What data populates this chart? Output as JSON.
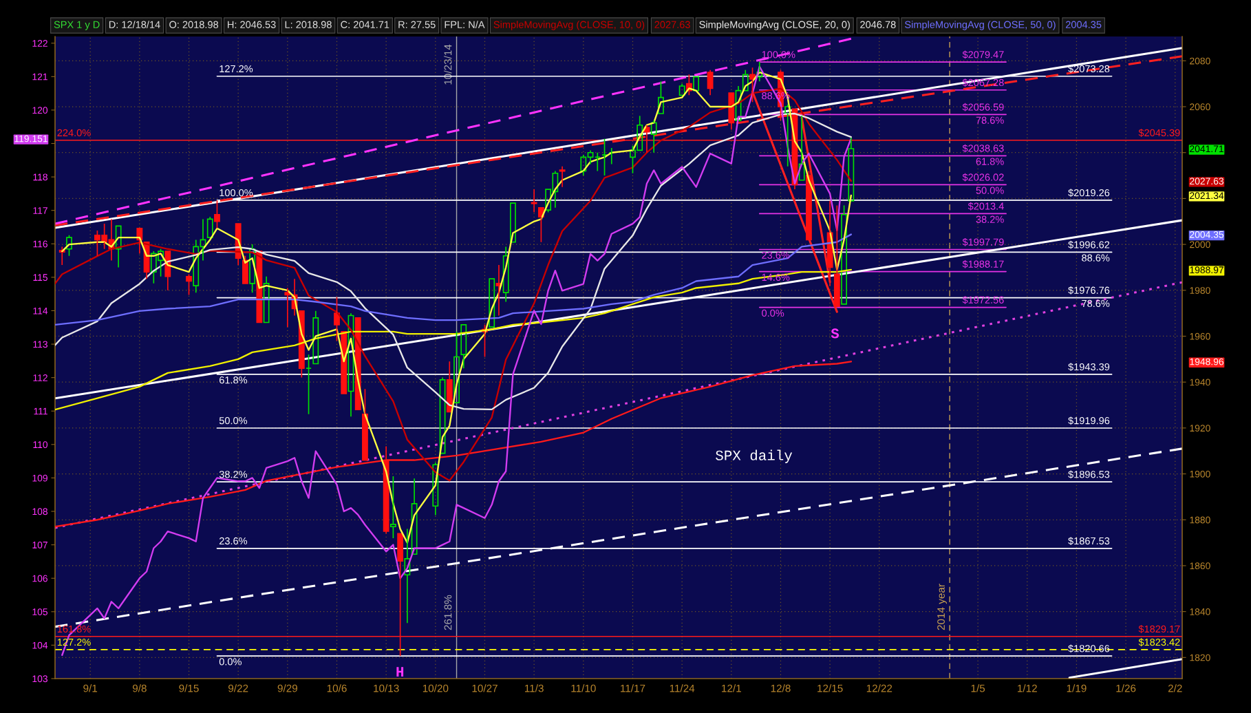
{
  "chart_data": {
    "type": "candlestick",
    "title": "SPX daily",
    "subtitle": "SPX 1 y D",
    "annotations": [
      "261.8%",
      "H",
      "S",
      "D: 12/18/14",
      "O: 2018.98",
      "H: 2046.53",
      "L: 2018.98",
      "C: 2041.71",
      "R: 27.55",
      "FPL: N/A",
      "2027.63",
      "2046.78",
      "2004.35"
    ],
    "x": [
      "2014-08-28",
      "2014-08-29",
      "2014-09-02",
      "2014-09-03",
      "2014-09-04",
      "2014-09-05",
      "2014-09-08",
      "2014-09-09",
      "2014-09-10",
      "2014-09-11",
      "2014-09-12",
      "2014-09-15",
      "2014-09-16",
      "2014-09-17",
      "2014-09-18",
      "2014-09-19",
      "2014-09-22",
      "2014-09-23",
      "2014-09-24",
      "2014-09-25",
      "2014-09-26",
      "2014-09-29",
      "2014-09-30",
      "2014-10-01",
      "2014-10-02",
      "2014-10-03",
      "2014-10-06",
      "2014-10-07",
      "2014-10-08",
      "2014-10-09",
      "2014-10-10",
      "2014-10-13",
      "2014-10-14",
      "2014-10-15",
      "2014-10-16",
      "2014-10-17",
      "2014-10-20",
      "2014-10-21",
      "2014-10-22",
      "2014-10-23",
      "2014-10-24",
      "2014-10-27",
      "2014-10-28",
      "2014-10-29",
      "2014-10-30",
      "2014-10-31",
      "2014-11-03",
      "2014-11-04",
      "2014-11-05",
      "2014-11-06",
      "2014-11-07",
      "2014-11-10",
      "2014-11-11",
      "2014-11-12",
      "2014-11-13",
      "2014-11-14",
      "2014-11-17",
      "2014-11-18",
      "2014-11-19",
      "2014-11-20",
      "2014-11-21",
      "2014-11-24",
      "2014-11-25",
      "2014-11-26",
      "2014-11-28",
      "2014-12-01",
      "2014-12-02",
      "2014-12-03",
      "2014-12-04",
      "2014-12-05",
      "2014-12-08",
      "2014-12-09",
      "2014-12-10",
      "2014-12-11",
      "2014-12-12",
      "2014-12-15",
      "2014-12-16",
      "2014-12-17",
      "2014-12-18"
    ],
    "xlim": [
      "2014-08-27",
      "2015-02-03"
    ],
    "xticks": [
      {
        "value": "2014-09-01",
        "label": "9/1"
      },
      {
        "value": "2014-09-08",
        "label": "9/8"
      },
      {
        "value": "2014-09-15",
        "label": "9/15"
      },
      {
        "value": "2014-09-22",
        "label": "9/22"
      },
      {
        "value": "2014-09-29",
        "label": "9/29"
      },
      {
        "value": "2014-10-06",
        "label": "10/6"
      },
      {
        "value": "2014-10-13",
        "label": "10/13"
      },
      {
        "value": "2014-10-20",
        "label": "10/20"
      },
      {
        "value": "2014-10-27",
        "label": "10/27"
      },
      {
        "value": "2014-11-03",
        "label": "11/3"
      },
      {
        "value": "2014-11-10",
        "label": "11/10"
      },
      {
        "value": "2014-11-17",
        "label": "11/17"
      },
      {
        "value": "2014-11-24",
        "label": "11/24"
      },
      {
        "value": "2014-12-01",
        "label": "12/1"
      },
      {
        "value": "2014-12-08",
        "label": "12/8"
      },
      {
        "value": "2014-12-15",
        "label": "12/15"
      },
      {
        "value": "2014-12-22",
        "label": "12/22"
      },
      {
        "value": "2015-01-05",
        "label": "1/5"
      },
      {
        "value": "2015-01-12",
        "label": "1/12"
      },
      {
        "value": "2015-01-19",
        "label": "1/19"
      },
      {
        "value": "2015-01-26",
        "label": "1/26"
      },
      {
        "value": "2015-02-02",
        "label": "2/2"
      }
    ],
    "ylim": [
      103.0,
      122.2
    ],
    "yticks": [
      103,
      104,
      105,
      106,
      107,
      108,
      109,
      110,
      111,
      112,
      113,
      114,
      115,
      116,
      117,
      118,
      {
        "value": 119,
        "label": null
      },
      119.151,
      120,
      121,
      122
    ],
    "y2lim": [
      1810.8,
      2090.6
    ],
    "y2ticks": [
      1820,
      1840,
      1860,
      1880,
      1900,
      1920,
      1940,
      1948.96,
      1960,
      1980,
      1988.97,
      2000,
      2004.35,
      {
        "value": 2020,
        "label": null
      },
      2021.34,
      2027.63,
      {
        "value": 2040,
        "label": null
      },
      2041.71,
      2060,
      2080
    ],
    "grid": true,
    "legend": "top",
    "ref_lines": [
      {
        "axis": "x",
        "value": "2014-10-23",
        "label": "10/23/14",
        "color": "#a8a8a8"
      },
      {
        "axis": "x",
        "value": "2015-01-01",
        "label": "2014 year",
        "color": "#c8a050",
        "line_style": "dashed"
      }
    ],
    "series": [
      {
        "type": "line",
        "axis": "y2",
        "name": "127.2%",
        "color": "#ffffff",
        "x": [
          "2014-09-19",
          "2015-01-24"
        ],
        "values": [
          2073.28,
          2073.28
        ],
        "value_labels": [
          null,
          "$2073.28"
        ]
      },
      {
        "type": "line",
        "axis": "y2",
        "name": "100.0%",
        "color": "#ffffff",
        "x": [
          "2014-09-19",
          "2015-01-24"
        ],
        "values": [
          2019.26,
          2019.26
        ],
        "value_labels": [
          null,
          "$2019.26"
        ]
      },
      {
        "type": "line",
        "axis": "y2",
        "name": "88.6%",
        "color": "#ffffff",
        "x": [
          "2014-09-19",
          "2015-01-24"
        ],
        "values": [
          1996.62,
          1996.62
        ],
        "value_labels": [
          null,
          "$1996.62"
        ]
      },
      {
        "type": "line",
        "axis": "y2",
        "name": "78.6%",
        "color": "#ffffff",
        "x": [
          "2014-09-19",
          "2015-01-24"
        ],
        "values": [
          1976.76,
          1976.76
        ],
        "value_labels": [
          null,
          "$1976.76"
        ]
      },
      {
        "type": "line",
        "axis": "y2",
        "name": "61.8%",
        "color": "#ffffff",
        "x": [
          "2014-09-19",
          "2015-01-24"
        ],
        "values": [
          1943.39,
          1943.39
        ],
        "value_labels": [
          null,
          "$1943.39"
        ]
      },
      {
        "type": "line",
        "axis": "y2",
        "name": "50.0%",
        "color": "#ffffff",
        "x": [
          "2014-09-19",
          "2015-01-24"
        ],
        "values": [
          1919.96,
          1919.96
        ],
        "value_labels": [
          null,
          "$1919.96"
        ]
      },
      {
        "type": "line",
        "axis": "y2",
        "name": "38.2%",
        "color": "#ffffff",
        "x": [
          "2014-09-19",
          "2015-01-24"
        ],
        "values": [
          1896.53,
          1896.53
        ],
        "value_labels": [
          null,
          "$1896.53"
        ]
      },
      {
        "type": "line",
        "axis": "y2",
        "name": "23.6%",
        "color": "#ffffff",
        "x": [
          "2014-09-19",
          "2015-01-24"
        ],
        "values": [
          1867.53,
          1867.53
        ],
        "value_labels": [
          null,
          "$1867.53"
        ]
      },
      {
        "type": "line",
        "axis": "y2",
        "name": "0.0%",
        "color": "#ffffff",
        "x": [
          "2014-09-19",
          "2015-01-24"
        ],
        "values": [
          1820.66,
          1820.66
        ],
        "value_labels": [
          null,
          "$1820.66"
        ]
      },
      {
        "type": "line",
        "axis": "y2",
        "name": "100.0%",
        "color": "#e632e6",
        "x": [
          "2014-12-05",
          "2015-01-09"
        ],
        "values": [
          2079.47,
          2079.47
        ],
        "value_labels": [
          null,
          "$2079.47"
        ]
      },
      {
        "type": "line",
        "axis": "y2",
        "name": "88.6%",
        "color": "#e632e6",
        "x": [
          "2014-12-05",
          "2015-01-09"
        ],
        "values": [
          2067.28,
          2067.28
        ],
        "value_labels": [
          null,
          "$2067.28"
        ]
      },
      {
        "type": "line",
        "axis": "y2",
        "name": "78.6%",
        "color": "#e632e6",
        "x": [
          "2014-12-05",
          "2015-01-09"
        ],
        "values": [
          2056.59,
          2056.59
        ],
        "value_labels": [
          null,
          "$2056.59"
        ]
      },
      {
        "type": "line",
        "axis": "y2",
        "name": "61.8%",
        "color": "#e632e6",
        "x": [
          "2014-12-05",
          "2015-01-09"
        ],
        "values": [
          2038.63,
          2038.63
        ],
        "value_labels": [
          null,
          "$2038.63"
        ]
      },
      {
        "type": "line",
        "axis": "y2",
        "name": "50.0%",
        "color": "#e632e6",
        "x": [
          "2014-12-05",
          "2015-01-09"
        ],
        "values": [
          2026.02,
          2026.02
        ],
        "value_labels": [
          null,
          "$2026.02"
        ]
      },
      {
        "type": "line",
        "axis": "y2",
        "name": "38.2%",
        "color": "#e632e6",
        "x": [
          "2014-12-05",
          "2015-01-09"
        ],
        "values": [
          2013.4,
          2013.4
        ],
        "value_labels": [
          null,
          "$2013.4"
        ]
      },
      {
        "type": "line",
        "axis": "y2",
        "name": "23.6%",
        "color": "#e632e6",
        "x": [
          "2014-12-05",
          "2015-01-09"
        ],
        "values": [
          1997.79,
          1997.79
        ],
        "value_labels": [
          null,
          "$1997.79"
        ]
      },
      {
        "type": "line",
        "axis": "y2",
        "name": "14.6%",
        "color": "#e632e6",
        "x": [
          "2014-12-05",
          "2015-01-09"
        ],
        "values": [
          1988.17,
          1988.17
        ],
        "value_labels": [
          null,
          "$1988.17"
        ]
      },
      {
        "type": "line",
        "axis": "y2",
        "name": "0.0%",
        "color": "#e632e6",
        "x": [
          "2014-12-05",
          "2015-01-09"
        ],
        "values": [
          1972.56,
          1972.56
        ],
        "value_labels": [
          null,
          "$1972.56"
        ]
      },
      {
        "type": "line",
        "axis": "y2",
        "name": "224.0%",
        "color": "#ff1a1a",
        "x": [
          "2014-08-27",
          "2015-02-03"
        ],
        "values": [
          2045.39,
          2045.39
        ],
        "value_labels": [
          null,
          "$2045.39"
        ]
      },
      {
        "type": "line",
        "axis": "y2",
        "name": "161.8%",
        "color": "#ff1a1a",
        "x": [
          "2014-08-27",
          "2015-02-03"
        ],
        "values": [
          1829.17,
          1829.17
        ],
        "value_labels": [
          null,
          "$1829.17"
        ]
      },
      {
        "type": "line",
        "axis": "y2",
        "name": "127.2%",
        "color": "#ffff00",
        "line_style": "dashed",
        "x": [
          "2014-08-27",
          "2015-02-03"
        ],
        "values": [
          1823.42,
          1823.42
        ],
        "value_labels": [
          null,
          "$1823.42"
        ]
      },
      {
        "type": "line",
        "axis": "y2",
        "color": "#ffffff",
        "x": [
          "2014-08-27",
          "2015-02-03"
        ],
        "values": [
          2007.2,
          2085.6
        ]
      },
      {
        "type": "line",
        "axis": "y2",
        "color": "#ff2020",
        "line_style": "dashed",
        "x": [
          "2014-08-27",
          "2015-02-03"
        ],
        "values": [
          2008.3,
          2082.0
        ]
      },
      {
        "type": "line",
        "axis": "y2",
        "color": "#ff33ff",
        "line_style": "dashed",
        "x": [
          "2014-08-27",
          "2014-12-18"
        ],
        "values": [
          2009.0,
          2089.6
        ]
      },
      {
        "type": "line",
        "axis": "y2",
        "color": "#ffffff",
        "x": [
          "2014-08-27",
          "2015-02-03"
        ],
        "values": [
          1932.9,
          2010.5
        ]
      },
      {
        "type": "line",
        "axis": "y2",
        "color": "#ffffff",
        "line_style": "dashed",
        "x": [
          "2014-08-27",
          "2015-02-03"
        ],
        "values": [
          1833.4,
          1911.0
        ]
      },
      {
        "type": "line",
        "axis": "y2",
        "color": "#e040e0",
        "line_style": "dotted",
        "x": [
          "2014-08-27",
          "2015-02-03"
        ],
        "values": [
          1876.5,
          1983.5
        ]
      },
      {
        "type": "line",
        "axis": "y2",
        "color": "#ffffff",
        "x": [
          "2015-01-18",
          "2015-02-03"
        ],
        "values": [
          1811.2,
          1819.3
        ]
      },
      {
        "type": "line",
        "axis": "y2",
        "color": "#ff2020",
        "x": [
          "2014-12-04",
          "2014-12-16"
        ],
        "values": [
          2066.6,
          1970.6
        ]
      },
      {
        "type": "line",
        "axis": "y2",
        "color": "#ff2020",
        "x": [
          "2014-12-11",
          "2014-12-15"
        ],
        "values": [
          2055.1,
          1983.6
        ]
      },
      {
        "type": "line",
        "axis": "y2",
        "color": "#ff1a1a",
        "x": [
          "2014-08-27",
          "2014-09-02",
          "2014-09-08",
          "2014-09-12",
          "2014-09-18",
          "2014-09-23",
          "2014-09-26",
          "2014-10-01",
          "2014-10-06",
          "2014-10-13",
          "2014-10-17",
          "2014-10-23",
          "2014-10-29",
          "2014-11-04",
          "2014-11-10",
          "2014-11-14",
          "2014-11-21",
          "2014-11-28",
          "2014-12-04",
          "2014-12-10",
          "2014-12-16",
          "2014-12-18"
        ],
        "values": [
          1877,
          1880,
          1884,
          1887,
          1890,
          1893,
          1897,
          1900,
          1903,
          1906,
          1906,
          1908,
          1911,
          1914,
          1918,
          1924,
          1933,
          1938,
          1943,
          1947,
          1948,
          1948.96
        ]
      },
      {
        "type": "line",
        "axis": "y2",
        "color": "#f0f000",
        "x": [
          "2014-08-27",
          "2014-09-02",
          "2014-09-08",
          "2014-09-12",
          "2014-09-18",
          "2014-09-22",
          "2014-09-24",
          "2014-09-30",
          "2014-10-03",
          "2014-10-08",
          "2014-10-14",
          "2014-10-16",
          "2014-10-21",
          "2014-10-23",
          "2014-10-28",
          "2014-10-31",
          "2014-11-04",
          "2014-11-10",
          "2014-11-13",
          "2014-11-17",
          "2014-11-20",
          "2014-11-24",
          "2014-11-26",
          "2014-12-02",
          "2014-12-04",
          "2014-12-09",
          "2014-12-11",
          "2014-12-16",
          "2014-12-18"
        ],
        "values": [
          1928,
          1933,
          1938,
          1944,
          1947,
          1950,
          1953,
          1956,
          1959,
          1962,
          1962,
          1961,
          1961,
          1961,
          1963,
          1965,
          1966,
          1968,
          1970,
          1974,
          1977,
          1979,
          1981,
          1983,
          1985,
          1987,
          1988,
          1988,
          1988.97
        ]
      },
      {
        "type": "line",
        "axis": "y2",
        "name": "SimpleMovingAvg (CLOSE, 10, 0)",
        "color": "#c80000",
        "x": [
          "2014-08-27",
          "2014-08-28",
          "2014-09-02",
          "2014-09-04",
          "2014-09-08",
          "2014-09-10",
          "2014-09-12",
          "2014-09-16",
          "2014-09-18",
          "2014-09-22",
          "2014-09-24",
          "2014-09-26",
          "2014-09-30",
          "2014-10-02",
          "2014-10-06",
          "2014-10-08",
          "2014-10-10",
          "2014-10-14",
          "2014-10-16",
          "2014-10-20",
          "2014-10-22",
          "2014-10-24",
          "2014-10-28",
          "2014-10-30",
          "2014-11-03",
          "2014-11-05",
          "2014-11-07",
          "2014-11-11",
          "2014-11-13",
          "2014-11-17",
          "2014-11-19",
          "2014-11-21",
          "2014-11-25",
          "2014-11-28",
          "2014-12-02",
          "2014-12-04",
          "2014-12-08",
          "2014-12-10",
          "2014-12-12",
          "2014-12-16",
          "2014-12-18"
        ],
        "values": [
          1982.9,
          1987.0,
          1994.9,
          1998.0,
          2000.8,
          1999.4,
          1998.0,
          1995.8,
          1997.2,
          1996.8,
          1996.5,
          1993.1,
          1989.8,
          1977.7,
          1970.5,
          1962.8,
          1951.3,
          1931.6,
          1914.9,
          1900.7,
          1897.1,
          1905.2,
          1924.6,
          1949.8,
          1974.3,
          1991.1,
          2005.8,
          2019.0,
          2029.0,
          2033.5,
          2040.0,
          2045.3,
          2051.2,
          2057.5,
          2061.4,
          2065.9,
          2067.9,
          2062.8,
          2052.6,
          2036.8,
          2027.63
        ]
      },
      {
        "type": "line",
        "axis": "y2",
        "name": "SimpleMovingAvg (CLOSE, 20, 0)",
        "color": "#e8e8e8",
        "x": [
          "2014-08-27",
          "2014-08-28",
          "2014-09-02",
          "2014-09-04",
          "2014-09-08",
          "2014-09-10",
          "2014-09-12",
          "2014-09-16",
          "2014-09-18",
          "2014-09-22",
          "2014-09-24",
          "2014-09-26",
          "2014-09-30",
          "2014-10-02",
          "2014-10-06",
          "2014-10-08",
          "2014-10-10",
          "2014-10-14",
          "2014-10-16",
          "2014-10-20",
          "2014-10-22",
          "2014-10-24",
          "2014-10-28",
          "2014-10-30",
          "2014-11-03",
          "2014-11-05",
          "2014-11-07",
          "2014-11-11",
          "2014-11-13",
          "2014-11-17",
          "2014-11-19",
          "2014-11-21",
          "2014-11-25",
          "2014-11-28",
          "2014-12-02",
          "2014-12-04",
          "2014-12-08",
          "2014-12-10",
          "2014-12-12",
          "2014-12-16",
          "2014-12-18"
        ],
        "values": [
          1956.1,
          1959.4,
          1966.5,
          1974.4,
          1982.8,
          1988.5,
          1992.5,
          1995.4,
          1997.6,
          1998.8,
          1998.0,
          1995.6,
          1992.8,
          1987.5,
          1983.6,
          1979.6,
          1972.2,
          1960.7,
          1946.3,
          1935.6,
          1930.0,
          1928.3,
          1928.1,
          1932.3,
          1937.5,
          1944.1,
          1955.5,
          1971.8,
          1989.4,
          2003.9,
          2015.5,
          2025.6,
          2035.1,
          2043.2,
          2047.5,
          2053.0,
          2056.6,
          2057.0,
          2055.0,
          2049.1,
          2046.78
        ]
      },
      {
        "type": "line",
        "axis": "y2",
        "name": "SimpleMovingAvg (CLOSE, 50, 0)",
        "color": "#6e6eff",
        "x": [
          "2014-08-27",
          "2014-09-02",
          "2014-09-08",
          "2014-09-12",
          "2014-09-18",
          "2014-09-22",
          "2014-09-24",
          "2014-09-30",
          "2014-10-03",
          "2014-10-08",
          "2014-10-10",
          "2014-10-16",
          "2014-10-20",
          "2014-10-23",
          "2014-10-29",
          "2014-10-31",
          "2014-11-05",
          "2014-11-10",
          "2014-11-14",
          "2014-11-17",
          "2014-11-20",
          "2014-11-24",
          "2014-11-26",
          "2014-12-02",
          "2014-12-04",
          "2014-12-09",
          "2014-12-11",
          "2014-12-16",
          "2014-12-18"
        ],
        "values": [
          1965,
          1967,
          1971,
          1972,
          1973,
          1976,
          1976,
          1976,
          1975,
          1973,
          1971,
          1968,
          1967,
          1967,
          1968,
          1970,
          1971,
          1972,
          1974,
          1975,
          1978,
          1981,
          1984,
          1986,
          1991,
          1994,
          1999,
          2001,
          2004.35
        ]
      },
      {
        "type": "line",
        "axis": "y2",
        "color": "#ffff40",
        "values": [
          1997,
          2000,
          2001,
          2001,
          1999,
          2003,
          2003,
          1995,
          1995,
          1996,
          1991,
          1988,
          1994,
          1998,
          2002,
          2007,
          2002,
          1992,
          1994,
          1981,
          1982,
          1980,
          1977,
          1961,
          1954,
          1960,
          1963,
          1949,
          1959,
          1941,
          1926,
          1901,
          1887,
          1876,
          1870,
          1882,
          1895,
          1916,
          1921,
          1939,
          1950,
          1961,
          1972,
          1979,
          1990,
          2005,
          2010,
          2011,
          2018,
          2024,
          2028,
          2032,
          2036,
          2037,
          2038,
          2040,
          2041,
          2047,
          2052,
          2053,
          2062,
          2064,
          2068,
          2067,
          2060,
          2060,
          2062,
          2069,
          2071,
          2075,
          2072,
          2064,
          2045,
          2040,
          2028,
          2006,
          1989,
          2002,
          2021.34
        ]
      },
      {
        "type": "line",
        "axis": "y",
        "color": "#d23cf0",
        "values": [
          103.7,
          104.3,
          105.1,
          104.8,
          105.3,
          105.1,
          106.0,
          106.2,
          106.9,
          107.1,
          107.4,
          107.2,
          107.1,
          108.4,
          108.7,
          109.0,
          108.9,
          108.9,
          109.0,
          108.7,
          109.3,
          109.5,
          109.6,
          108.9,
          108.4,
          109.8,
          108.8,
          108.0,
          108.1,
          107.9,
          107.6,
          106.8,
          107.0,
          106.0,
          106.3,
          106.9,
          106.9,
          107.0,
          107.1,
          108.2,
          108.1,
          107.8,
          108.2,
          108.9,
          109.2,
          112.1,
          114.0,
          113.6,
          114.6,
          115.2,
          114.6,
          114.8,
          115.7,
          115.5,
          115.7,
          116.3,
          116.6,
          116.8,
          117.8,
          118.2,
          117.8,
          118.3,
          118.0,
          117.7,
          118.7,
          118.4,
          119.8,
          119.8,
          120.5,
          121.3,
          120.2,
          118.9,
          117.8,
          118.4,
          118.7,
          117.5,
          116.4,
          118.6,
          119.151
        ]
      },
      {
        "axis": "y2",
        "ohlc": [
          [
            1997.4,
            1999,
            1991,
            1996.7
          ],
          [
            1998,
            2004,
            1995,
            2003
          ],
          [
            2004,
            2006,
            1995,
            2002
          ],
          [
            2004,
            2009,
            1998,
            2001
          ],
          [
            2002,
            2011,
            1993,
            1998
          ],
          [
            1998,
            2008,
            1990,
            2008
          ],
          [
            2007,
            2007,
            1996,
            2002
          ],
          [
            2001,
            2001,
            1985,
            1988
          ],
          [
            1988,
            1997,
            1983,
            1996
          ],
          [
            1993,
            1998,
            1986,
            1997
          ],
          [
            1997,
            1997,
            1980,
            1986
          ],
          [
            1986,
            1987,
            1978,
            1984
          ],
          [
            1982,
            2002,
            1979,
            1999
          ],
          [
            1999,
            2011,
            1993,
            2002
          ],
          [
            2003,
            2012,
            2003,
            2011
          ],
          [
            2013,
            2019.26,
            2007,
            2010
          ],
          [
            2009,
            2009,
            1991,
            1994
          ],
          [
            1993,
            1995,
            1983,
            1983
          ],
          [
            1983,
            2000,
            1979,
            1998
          ],
          [
            1997,
            1997,
            1966,
            1966
          ],
          [
            1966,
            1986,
            1966,
            1983
          ],
          [
            1979,
            1981,
            1964,
            1978
          ],
          [
            1978,
            1985,
            1969,
            1972
          ],
          [
            1971,
            1971,
            1942,
            1946
          ],
          [
            1946,
            1952,
            1926,
            1946
          ],
          [
            1948,
            1971,
            1948,
            1968
          ],
          [
            1970,
            1977,
            1958,
            1965
          ],
          [
            1962,
            1962,
            1935,
            1935
          ],
          [
            1936,
            1970,
            1925,
            1969
          ],
          [
            1968,
            1968,
            1928,
            1928
          ],
          [
            1926,
            1937,
            1906,
            1906
          ],
          [
            1906,
            1912,
            1874,
            1875
          ],
          [
            1877,
            1899,
            1872,
            1878
          ],
          [
            1874,
            1874,
            1820.66,
            1862
          ],
          [
            1856,
            1876,
            1835,
            1863
          ],
          [
            1865,
            1898,
            1865,
            1887
          ],
          [
            1886,
            1905,
            1882,
            1904
          ],
          [
            1909,
            1942,
            1909,
            1941
          ],
          [
            1941,
            1949,
            1927,
            1927
          ],
          [
            1931,
            1962,
            1931,
            1951
          ],
          [
            1952,
            1965,
            1946,
            1965
          ],
          [
            1963,
            1965,
            1951,
            1962
          ],
          [
            1964,
            1985,
            1964,
            1985
          ],
          [
            1983,
            1991,
            1969,
            1982
          ],
          [
            1979,
            1999,
            1975,
            1995
          ],
          [
            2001,
            2018,
            2001,
            2018
          ],
          [
            2018.2,
            2024,
            2014,
            2017.8
          ],
          [
            2016,
            2016,
            2001,
            2012
          ],
          [
            2015,
            2024,
            2014,
            2024
          ],
          [
            2023,
            2032,
            2016,
            2031
          ],
          [
            2032.4,
            2034,
            2025,
            2031.9
          ],
          [
            2032,
            2039,
            2030,
            2038
          ],
          [
            2038,
            2041,
            2035,
            2040
          ],
          [
            2038,
            2040,
            2032,
            2038
          ],
          [
            2039,
            2046,
            2030,
            2039
          ],
          [
            2040,
            2042,
            2035,
            2040
          ],
          [
            2038,
            2043,
            2031,
            2041
          ],
          [
            2041,
            2056,
            2041,
            2052
          ],
          [
            2051,
            2052,
            2040,
            2049
          ],
          [
            2048,
            2054,
            2040,
            2053
          ],
          [
            2057,
            2071,
            2057,
            2064
          ],
          [
            2065,
            2070,
            2065,
            2069
          ],
          [
            2070,
            2074,
            2065,
            2067
          ],
          [
            2067,
            2073,
            2067,
            2073
          ],
          [
            2075,
            2076,
            2065,
            2068
          ],
          [
            2066,
            2066,
            2050,
            2053
          ],
          [
            2054,
            2069,
            2054,
            2067
          ],
          [
            2067,
            2076,
            2067,
            2074
          ],
          [
            2074,
            2077,
            2062,
            2072
          ],
          [
            2073,
            2079.47,
            2071,
            2075
          ],
          [
            2075,
            2076,
            2054,
            2060
          ],
          [
            2057,
            2061,
            2034,
            2060
          ],
          [
            2059,
            2059,
            2024,
            2026
          ],
          [
            2028,
            2056,
            2028,
            2035
          ],
          [
            2030,
            2032,
            2002,
            2002
          ],
          [
            2005,
            2019,
            1982,
            1990
          ],
          [
            1987,
            2017,
            1972.56,
            1973
          ],
          [
            1974,
            2017,
            1974,
            2013
          ],
          [
            2018.98,
            2046.53,
            2018.98,
            2041.71
          ]
        ]
      }
    ]
  }
}
